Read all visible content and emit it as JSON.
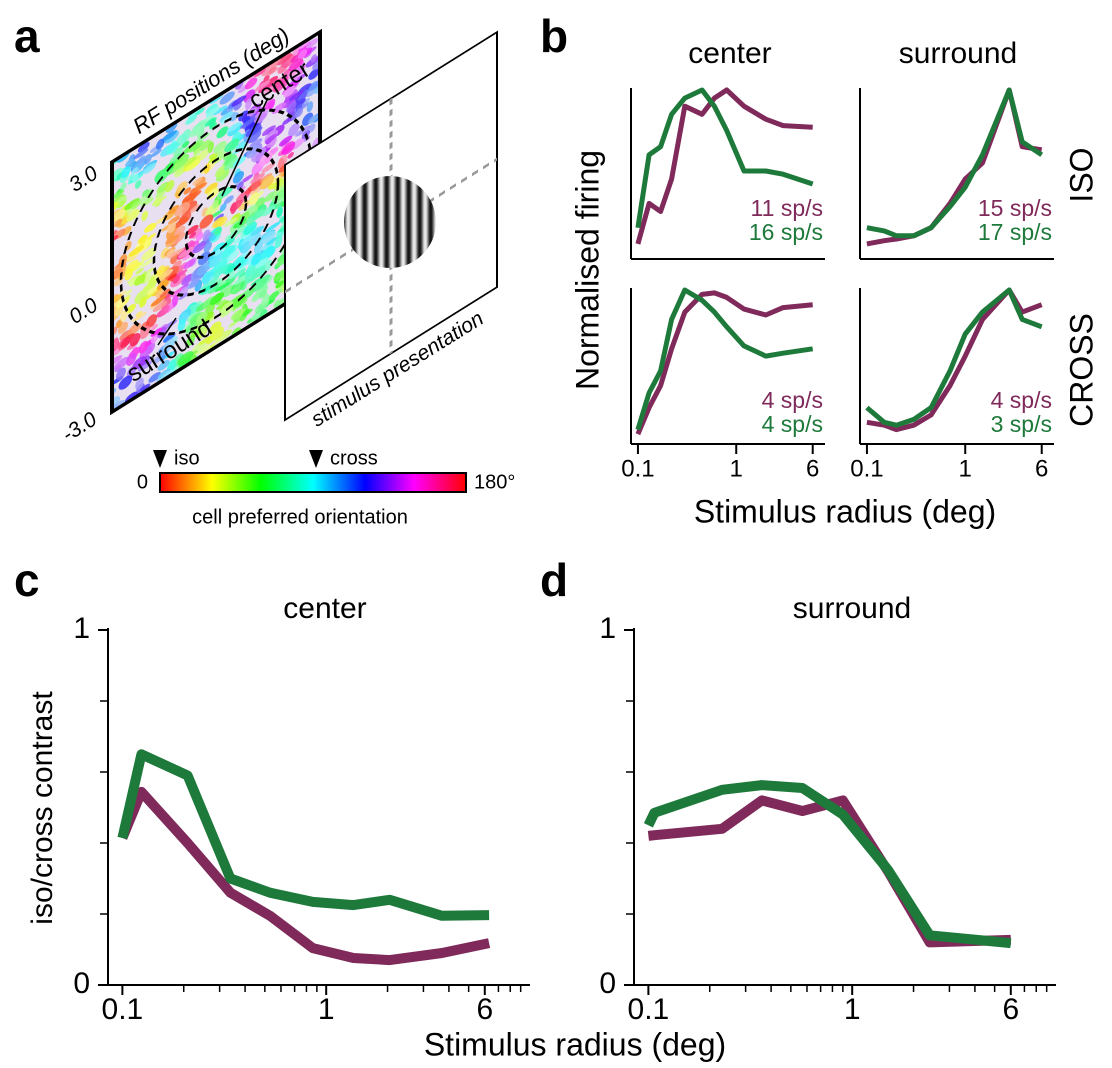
{
  "panel_labels": [
    "a",
    "b",
    "c",
    "d"
  ],
  "diagram": {
    "map_title": "RF positions (deg)",
    "center_label": "center",
    "surround_label": "surround",
    "y_positions": [
      "3.0",
      "0.0",
      "-3.0"
    ],
    "stimulus_label": "stimulus presentation",
    "iso_marker": "iso",
    "cross_marker": "cross",
    "colorbar_min": "0",
    "colorbar_max": "180°",
    "colorbar_label": "cell preferred orientation"
  },
  "panel_b": {
    "columns": [
      "center",
      "surround"
    ],
    "rows": [
      "ISO",
      "CROSS"
    ],
    "ylabel": "Normalised firing",
    "xlabel": "Stimulus radius (deg)"
  },
  "panel_cd": {
    "ylabel": "iso/cross contrast",
    "xlabel": "Stimulus radius (deg)"
  },
  "chart_data": [
    {
      "type": "line",
      "log_x": true,
      "xlim": [
        0.085,
        8
      ],
      "ylim": [
        0,
        1
      ],
      "x": [
        0.1,
        0.13,
        0.17,
        0.22,
        0.3,
        0.45,
        0.6,
        0.8,
        1.2,
        2,
        3,
        6
      ],
      "series": [
        {
          "name": "iso",
          "color": "#7f2a5a",
          "label": "11 sp/s",
          "values": [
            0.05,
            0.3,
            0.25,
            0.45,
            0.9,
            0.85,
            0.95,
            1.0,
            0.9,
            0.82,
            0.78,
            0.77
          ]
        },
        {
          "name": "cross",
          "color": "#1e7a3b",
          "label": "16 sp/s",
          "values": [
            0.15,
            0.6,
            0.65,
            0.85,
            0.95,
            1.0,
            0.9,
            0.75,
            0.5,
            0.5,
            0.48,
            0.42
          ]
        }
      ]
    },
    {
      "type": "line",
      "log_x": true,
      "xlim": [
        0.085,
        8
      ],
      "ylim": [
        0,
        1
      ],
      "x": [
        0.1,
        0.15,
        0.2,
        0.3,
        0.45,
        0.7,
        1,
        1.5,
        2.8,
        3.8,
        6
      ],
      "series": [
        {
          "name": "iso",
          "color": "#7f2a5a",
          "label": "15 sp/s",
          "values": [
            0.05,
            0.07,
            0.08,
            0.1,
            0.15,
            0.3,
            0.45,
            0.55,
            1.0,
            0.65,
            0.63
          ]
        },
        {
          "name": "cross",
          "color": "#1e7a3b",
          "label": "17 sp/s",
          "values": [
            0.15,
            0.13,
            0.1,
            0.1,
            0.15,
            0.28,
            0.4,
            0.6,
            1.0,
            0.68,
            0.6
          ]
        }
      ]
    },
    {
      "type": "line",
      "log_x": true,
      "xlim": [
        0.085,
        8
      ],
      "ylim": [
        0,
        1
      ],
      "x": [
        0.1,
        0.13,
        0.17,
        0.22,
        0.3,
        0.45,
        0.6,
        0.8,
        1.2,
        2,
        3,
        6
      ],
      "xticks": [
        0.1,
        1,
        6
      ],
      "series": [
        {
          "name": "iso",
          "color": "#7f2a5a",
          "label": "4 sp/s",
          "values": [
            0.02,
            0.2,
            0.35,
            0.6,
            0.85,
            0.97,
            0.98,
            0.95,
            0.87,
            0.83,
            0.88,
            0.9
          ]
        },
        {
          "name": "cross",
          "color": "#1e7a3b",
          "label": "4 sp/s",
          "values": [
            0.05,
            0.3,
            0.45,
            0.8,
            1.0,
            0.93,
            0.85,
            0.75,
            0.62,
            0.55,
            0.57,
            0.6
          ]
        }
      ]
    },
    {
      "type": "line",
      "log_x": true,
      "xlim": [
        0.085,
        8
      ],
      "ylim": [
        0,
        1
      ],
      "x": [
        0.1,
        0.15,
        0.2,
        0.3,
        0.45,
        0.7,
        1,
        1.5,
        2.8,
        3.8,
        6
      ],
      "xticks": [
        0.1,
        1,
        6
      ],
      "series": [
        {
          "name": "iso",
          "color": "#7f2a5a",
          "label": "4 sp/s",
          "values": [
            0.1,
            0.08,
            0.05,
            0.08,
            0.15,
            0.35,
            0.55,
            0.8,
            1.0,
            0.85,
            0.9
          ]
        },
        {
          "name": "cross",
          "color": "#1e7a3b",
          "label": "3 sp/s",
          "values": [
            0.2,
            0.1,
            0.08,
            0.12,
            0.2,
            0.45,
            0.7,
            0.85,
            1.0,
            0.8,
            0.75
          ]
        }
      ]
    },
    {
      "type": "line",
      "title": "center",
      "log_x": true,
      "xlim": [
        0.085,
        10
      ],
      "ylim": [
        0,
        1
      ],
      "xticks": [
        0.1,
        1,
        6
      ],
      "minor_xticks": [
        0.2,
        0.3,
        0.4,
        0.5,
        0.6,
        0.7,
        0.8,
        0.9,
        2,
        3,
        4,
        5,
        7,
        8,
        9
      ],
      "yticks": [
        0,
        1
      ],
      "minor_yticks": [
        0.2,
        0.4,
        0.6,
        0.8
      ],
      "x": [
        0.1,
        0.124,
        0.209,
        0.339,
        0.53,
        0.86,
        1.36,
        2.05,
        3.7,
        6.3
      ],
      "series": [
        {
          "name": "iso",
          "color": "#7f2a5a",
          "values": [
            0.414,
            0.544,
            0.4,
            0.26,
            0.195,
            0.104,
            0.076,
            0.07,
            0.09,
            0.118
          ]
        },
        {
          "name": "cross",
          "color": "#1e7a3b",
          "values": [
            0.414,
            0.65,
            0.59,
            0.3,
            0.26,
            0.234,
            0.225,
            0.24,
            0.195,
            0.197
          ]
        }
      ]
    },
    {
      "type": "line",
      "title": "surround",
      "log_x": true,
      "xlim": [
        0.085,
        10
      ],
      "ylim": [
        0,
        1
      ],
      "xticks": [
        0.1,
        1,
        6
      ],
      "minor_xticks": [
        0.2,
        0.3,
        0.4,
        0.5,
        0.6,
        0.7,
        0.8,
        0.9,
        2,
        3,
        4,
        5,
        7,
        8,
        9
      ],
      "yticks": [
        0,
        1
      ],
      "minor_yticks": [
        0.2,
        0.4,
        0.6,
        0.8
      ],
      "x": [
        0.1,
        0.107,
        0.23,
        0.36,
        0.57,
        0.9,
        1.5,
        2.4,
        6
      ],
      "series": [
        {
          "name": "iso",
          "color": "#7f2a5a",
          "values": [
            0.42,
            0.422,
            0.44,
            0.52,
            0.49,
            0.52,
            0.32,
            0.12,
            0.127
          ]
        },
        {
          "name": "cross",
          "color": "#1e7a3b",
          "values": [
            0.45,
            0.485,
            0.55,
            0.563,
            0.555,
            0.48,
            0.324,
            0.14,
            0.118
          ]
        }
      ]
    }
  ]
}
